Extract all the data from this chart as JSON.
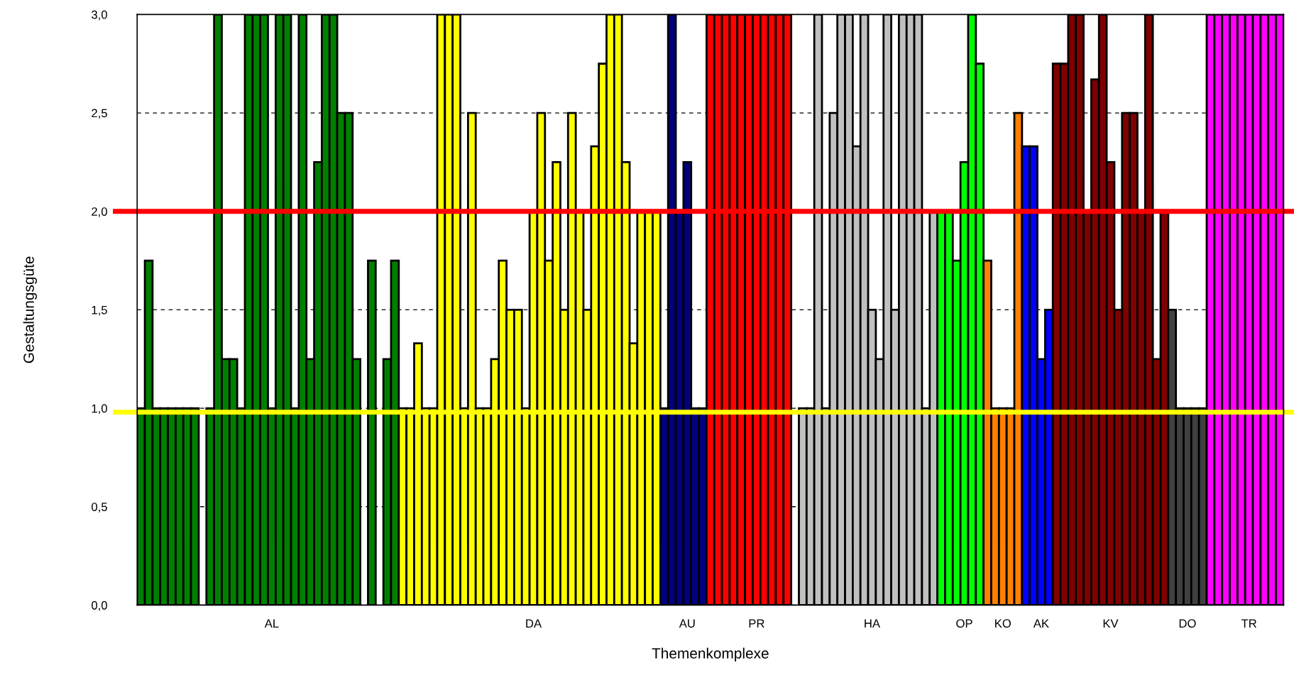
{
  "chart_data": {
    "type": "bar",
    "xlabel": "Themenkomplexe",
    "ylabel": "Gestaltungsgüte",
    "categories": [
      null,
      null,
      null,
      null,
      null,
      null,
      null,
      null,
      null,
      null,
      null,
      null,
      null,
      null,
      null,
      null,
      null,
      "AL",
      null,
      null,
      null,
      null,
      null,
      null,
      null,
      null,
      null,
      null,
      null,
      null,
      null,
      null,
      null,
      null,
      null,
      null,
      null,
      null,
      null,
      null,
      null,
      null,
      null,
      null,
      null,
      null,
      null,
      null,
      null,
      null,
      null,
      "DA",
      null,
      null,
      null,
      null,
      null,
      null,
      null,
      null,
      null,
      null,
      null,
      null,
      null,
      null,
      null,
      null,
      null,
      null,
      null,
      "AU",
      null,
      null,
      null,
      null,
      null,
      null,
      null,
      null,
      "PR",
      null,
      null,
      null,
      null,
      null,
      null,
      null,
      null,
      null,
      null,
      null,
      null,
      null,
      null,
      "HA",
      null,
      null,
      null,
      null,
      null,
      null,
      null,
      null,
      null,
      null,
      null,
      "OP",
      null,
      null,
      null,
      null,
      "KO",
      null,
      null,
      null,
      null,
      "AK",
      null,
      null,
      null,
      null,
      null,
      null,
      null,
      null,
      "KV",
      null,
      null,
      null,
      null,
      null,
      null,
      null,
      null,
      null,
      "DO",
      null,
      null,
      null,
      null,
      null,
      null,
      null,
      "TR",
      null,
      null,
      null,
      null
    ],
    "values": [
      1,
      1.75,
      1,
      1,
      1,
      1,
      1,
      1,
      null,
      1,
      3,
      1.25,
      1.25,
      1,
      3,
      3,
      3,
      1,
      3,
      3,
      1,
      3,
      1.25,
      2.25,
      3,
      3,
      2.5,
      2.5,
      1.25,
      null,
      1.75,
      null,
      1.25,
      1.75,
      1,
      1,
      1.33,
      1,
      1,
      3,
      3,
      3,
      1,
      2.5,
      1,
      1,
      1.25,
      1.75,
      1.5,
      1.5,
      1,
      2,
      2.5,
      1.75,
      2.25,
      1.5,
      2.5,
      2,
      1.5,
      2.33,
      2.75,
      3,
      3,
      2.25,
      1.33,
      2,
      2,
      2,
      1,
      3,
      2,
      2.25,
      1,
      1,
      3,
      3,
      3,
      3,
      3,
      3,
      3,
      3,
      3,
      3,
      3,
      null,
      1,
      1,
      3,
      1,
      2.5,
      3,
      3,
      2.33,
      3,
      1.5,
      1.25,
      3,
      1.5,
      3,
      3,
      3,
      1,
      2,
      2,
      2,
      1.75,
      2.25,
      3,
      2.75,
      1.75,
      1,
      1,
      1,
      2.5,
      2.33,
      2.33,
      1.25,
      1.5,
      2.75,
      2.75,
      3,
      3,
      2,
      2.67,
      3,
      2.25,
      1.5,
      2.5,
      2.5,
      2,
      3,
      1.25,
      2,
      1.5,
      1,
      1,
      1,
      1,
      3,
      3,
      3,
      3,
      3,
      3,
      3,
      3,
      3,
      3
    ],
    "colors": [
      "#008000",
      "#008000",
      "#008000",
      "#008000",
      "#008000",
      "#008000",
      "#008000",
      "#008000",
      null,
      "#008000",
      "#008000",
      "#008000",
      "#008000",
      "#008000",
      "#008000",
      "#008000",
      "#008000",
      "#008000",
      "#008000",
      "#008000",
      "#008000",
      "#008000",
      "#008000",
      "#008000",
      "#008000",
      "#008000",
      "#008000",
      "#008000",
      "#008000",
      "#008000",
      "#008000",
      "#008000",
      "#008000",
      "#008000",
      "#ffff00",
      "#ffff00",
      "#ffff00",
      "#ffff00",
      "#ffff00",
      "#ffff00",
      "#ffff00",
      "#ffff00",
      "#ffff00",
      "#ffff00",
      "#ffff00",
      "#ffff00",
      "#ffff00",
      "#ffff00",
      "#ffff00",
      "#ffff00",
      "#ffff00",
      "#ffff00",
      "#ffff00",
      "#ffff00",
      "#ffff00",
      "#ffff00",
      "#ffff00",
      "#ffff00",
      "#ffff00",
      "#ffff00",
      "#ffff00",
      "#ffff00",
      "#ffff00",
      "#ffff00",
      "#ffff00",
      "#ffff00",
      "#ffff00",
      "#ffff00",
      "#000080",
      "#000080",
      "#000080",
      "#000080",
      "#000080",
      "#000080",
      "#ff0000",
      "#ff0000",
      "#ff0000",
      "#ff0000",
      "#ff0000",
      "#ff0000",
      "#ff0000",
      "#ff0000",
      "#ff0000",
      "#ff0000",
      "#ff0000",
      null,
      "#c0c0c0",
      "#c0c0c0",
      "#c0c0c0",
      "#c0c0c0",
      "#c0c0c0",
      "#c0c0c0",
      "#c0c0c0",
      "#c0c0c0",
      "#c0c0c0",
      "#c0c0c0",
      "#c0c0c0",
      "#c0c0c0",
      "#c0c0c0",
      "#c0c0c0",
      "#c0c0c0",
      "#c0c0c0",
      "#c0c0c0",
      "#c0c0c0",
      "#00ff00",
      "#00ff00",
      "#00ff00",
      "#00ff00",
      "#00ff00",
      "#00ff00",
      "#ff8000",
      "#ff8000",
      "#ff8000",
      "#ff8000",
      "#ff8000",
      "#0000ff",
      "#0000ff",
      "#0000ff",
      "#0000ff",
      "#800000",
      "#800000",
      "#800000",
      "#800000",
      "#800000",
      "#800000",
      "#800000",
      "#800000",
      "#800000",
      "#800000",
      "#800000",
      "#800000",
      "#800000",
      "#800000",
      "#800000",
      "#404040",
      "#404040",
      "#404040",
      "#404040",
      "#404040",
      "#ff00ff",
      "#ff00ff",
      "#ff00ff",
      "#ff00ff",
      "#ff00ff",
      "#ff00ff",
      "#ff00ff",
      "#ff00ff",
      "#ff00ff",
      "#ff00ff"
    ],
    "ylim": [
      0,
      3
    ],
    "yticks": [
      {
        "value": 0,
        "label": "0,0"
      },
      {
        "value": 0.5,
        "label": "0,5"
      },
      {
        "value": 1,
        "label": "1,0"
      },
      {
        "value": 1.5,
        "label": "1,5"
      },
      {
        "value": 2,
        "label": "2,0"
      },
      {
        "value": 2.5,
        "label": "2,5"
      },
      {
        "value": 3,
        "label": "3,0"
      }
    ],
    "grid": "y",
    "line_style": "dashed",
    "legend": false,
    "ref_lines": [
      {
        "axis": "y",
        "value": 2,
        "color": "#ff0000",
        "line_style": "solid"
      },
      {
        "axis": "y",
        "value": 0.98,
        "color": "#ffff00",
        "line_style": "solid"
      }
    ]
  }
}
